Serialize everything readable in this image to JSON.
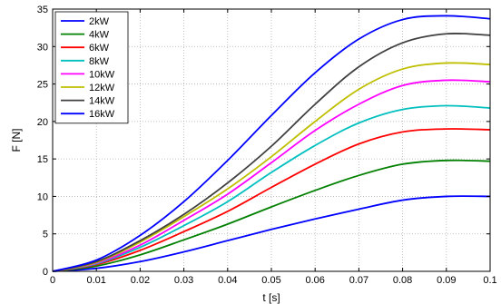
{
  "chart_data": {
    "type": "line",
    "xlabel": "t [s]",
    "ylabel": "F [N]",
    "xlim": [
      0,
      0.1
    ],
    "ylim": [
      0,
      35
    ],
    "xticks": [
      "0",
      "0.01",
      "0.02",
      "0.03",
      "0.04",
      "0.05",
      "0.06",
      "0.07",
      "0.08",
      "0.09",
      "0.1"
    ],
    "yticks": [
      "0",
      "5",
      "10",
      "15",
      "20",
      "25",
      "30",
      "35"
    ],
    "grid": true,
    "legend_position": "top-left",
    "x": [
      0,
      0.01,
      0.02,
      0.03,
      0.04,
      0.05,
      0.06,
      0.07,
      0.08,
      0.09,
      0.1
    ],
    "series": [
      {
        "name": "2kW",
        "color": "#0000ff",
        "values": [
          0,
          0.4,
          1.3,
          2.6,
          4.1,
          5.6,
          7.0,
          8.3,
          9.5,
          10.0,
          10.0
        ]
      },
      {
        "name": "4kW",
        "color": "#008000",
        "values": [
          0,
          0.7,
          2.2,
          4.2,
          6.3,
          8.6,
          10.8,
          12.8,
          14.3,
          14.8,
          14.7
        ]
      },
      {
        "name": "6kW",
        "color": "#ff0000",
        "values": [
          0,
          0.9,
          2.8,
          5.3,
          8.0,
          11.2,
          14.3,
          17.0,
          18.6,
          19.0,
          18.9
        ]
      },
      {
        "name": "8kW",
        "color": "#00bfbf",
        "values": [
          0,
          1.0,
          3.2,
          6.1,
          9.3,
          13.2,
          16.8,
          19.8,
          21.6,
          22.1,
          21.8
        ]
      },
      {
        "name": "10kW",
        "color": "#ff00ff",
        "values": [
          0,
          1.1,
          3.5,
          6.8,
          10.3,
          14.5,
          18.8,
          22.3,
          24.8,
          25.5,
          25.3
        ]
      },
      {
        "name": "12kW",
        "color": "#bfbf00",
        "values": [
          0,
          1.2,
          3.9,
          7.3,
          11.0,
          15.3,
          20.0,
          24.3,
          27.0,
          27.8,
          27.6
        ]
      },
      {
        "name": "14kW",
        "color": "#404040",
        "values": [
          0,
          1.3,
          4.1,
          7.6,
          11.8,
          16.7,
          22.3,
          27.3,
          30.5,
          31.7,
          31.5
        ]
      },
      {
        "name": "16kW",
        "color": "#0000ff",
        "values": [
          0,
          1.5,
          4.8,
          9.3,
          14.8,
          20.8,
          26.5,
          31.0,
          33.6,
          34.1,
          33.7
        ]
      }
    ]
  }
}
